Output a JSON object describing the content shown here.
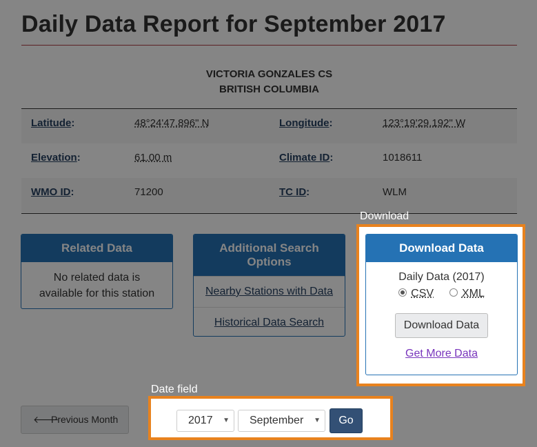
{
  "title": "Daily Data Report for September 2017",
  "station": {
    "name": "VICTORIA GONZALES CS",
    "province": "BRITISH COLUMBIA"
  },
  "meta": {
    "latitude_label": "Latitude",
    "latitude_value": "48°24'47.896\" N",
    "longitude_label": "Longitude",
    "longitude_value": "123°19'29.192\" W",
    "elevation_label": "Elevation",
    "elevation_value": "61.00 m",
    "climate_id_label": "Climate ID",
    "climate_id_value": "1018611",
    "wmo_id_label": "WMO ID",
    "wmo_id_value": "71200",
    "tc_id_label": "TC ID",
    "tc_id_value": "WLM",
    "colon": ":"
  },
  "related": {
    "header": "Related Data",
    "body": "No related data is available for this station"
  },
  "additional": {
    "header": "Additional Search Options",
    "links": [
      "Nearby Stations with Data",
      "Historical Data Search"
    ]
  },
  "download": {
    "caption": "Download",
    "header": "Download Data",
    "subtitle": "Daily Data (2017)",
    "format_csv": "CSV",
    "format_xml": "XML",
    "selected_format": "CSV",
    "button": "Download Data",
    "more_link": "Get More Data"
  },
  "nav": {
    "prev_month": "Previous Month"
  },
  "date_field": {
    "caption": "Date field",
    "year": "2017",
    "month": "September",
    "go": "Go"
  },
  "colors": {
    "accent": "#2572b4",
    "highlight_border": "#e8821e",
    "go_button": "#335075",
    "title_rule": "#af3c43"
  }
}
